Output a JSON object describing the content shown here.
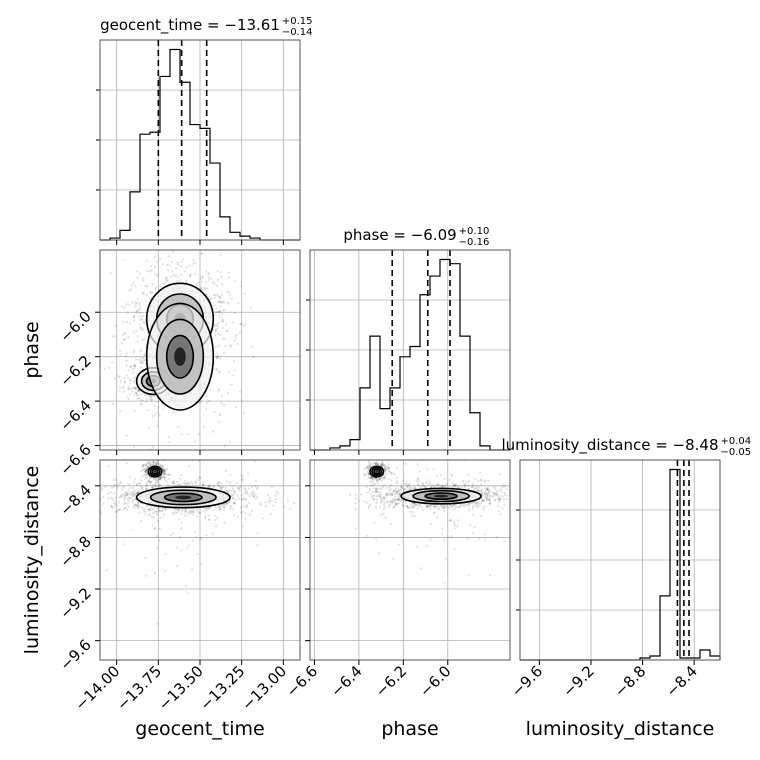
{
  "chart_data": {
    "type": "corner",
    "parameters": [
      "geocent_time",
      "phase",
      "luminosity_distance"
    ],
    "axis_labels": {
      "geocent_time": "geocent_time",
      "phase": "phase",
      "luminosity_distance": "luminosity_distance"
    },
    "ranges": {
      "geocent_time": [
        -14.1,
        -12.9
      ],
      "phase": [
        -6.62,
        -5.72
      ],
      "luminosity_distance": [
        -9.75,
        -8.2
      ]
    },
    "ticks": {
      "geocent_time": [
        -14.0,
        -13.75,
        -13.5,
        -13.25,
        -13.0
      ],
      "phase": [
        -6.6,
        -6.4,
        -6.2,
        -6.0
      ],
      "luminosity_distance": [
        -9.6,
        -9.2,
        -8.8,
        -8.4
      ]
    },
    "tick_labels": {
      "geocent_time": [
        "−14.00",
        "−13.75",
        "−13.50",
        "−13.25",
        "−13.00"
      ],
      "phase": [
        "−6.6",
        "−6.4",
        "−6.2",
        "−6.0"
      ],
      "luminosity_distance": [
        "−9.6",
        "−9.2",
        "−8.8",
        "−8.4"
      ]
    },
    "titles": {
      "geocent_time": {
        "prefix": "geocent_time = −13.61",
        "plus": "+0.15",
        "minus": "−0.14"
      },
      "phase": {
        "prefix": "phase = −6.09",
        "plus": "+0.10",
        "minus": "−0.16"
      },
      "luminosity_distance": {
        "prefix": "luminosity_distance = −8.48",
        "plus": "+0.04",
        "minus": "−0.05"
      }
    },
    "quantiles": {
      "geocent_time": [
        -13.75,
        -13.61,
        -13.46
      ],
      "phase": [
        -6.25,
        -6.09,
        -5.99
      ],
      "luminosity_distance": [
        -8.53,
        -8.48,
        -8.44
      ]
    },
    "histograms": {
      "geocent_time": {
        "edges": [
          -14.1,
          -14.04,
          -13.98,
          -13.92,
          -13.86,
          -13.8,
          -13.74,
          -13.68,
          -13.62,
          -13.56,
          -13.5,
          -13.44,
          -13.38,
          -13.32,
          -13.26,
          -13.2,
          -13.14,
          -13.08,
          -13.02,
          -12.96,
          -12.9
        ],
        "counts": [
          0.0,
          0.01,
          0.05,
          0.25,
          0.55,
          0.56,
          0.85,
          0.99,
          0.82,
          0.6,
          0.58,
          0.4,
          0.12,
          0.04,
          0.02,
          0.01,
          0.0,
          0.0,
          0.0,
          0.0
        ]
      },
      "phase": {
        "edges": [
          -6.62,
          -6.575,
          -6.53,
          -6.485,
          -6.44,
          -6.395,
          -6.35,
          -6.305,
          -6.26,
          -6.215,
          -6.17,
          -6.125,
          -6.08,
          -6.035,
          -5.99,
          -5.945,
          -5.9,
          -5.855,
          -5.81,
          -5.765,
          -5.72
        ],
        "counts": [
          0.0,
          0.0,
          0.01,
          0.02,
          0.05,
          0.3,
          0.55,
          0.2,
          0.3,
          0.45,
          0.5,
          0.75,
          0.84,
          0.92,
          0.9,
          0.55,
          0.18,
          0.02,
          0.0,
          0.0
        ]
      },
      "luminosity_distance": {
        "edges": [
          -9.75,
          -9.6725,
          -9.595,
          -9.5175,
          -9.44,
          -9.3625,
          -9.285,
          -9.2075,
          -9.13,
          -9.0525,
          -8.975,
          -8.8975,
          -8.82,
          -8.7425,
          -8.665,
          -8.5875,
          -8.51,
          -8.4325,
          -8.355,
          -8.2775,
          -8.2
        ],
        "counts": [
          0.0,
          0.0,
          0.0,
          0.0,
          0.0,
          0.0,
          0.0,
          0.0,
          0.0,
          0.0,
          0.0,
          0.0,
          0.01,
          0.02,
          0.32,
          0.95,
          0.01,
          0.01,
          0.05,
          0.02
        ]
      }
    },
    "density_peaks": {
      "phase_vs_geocent_time": [
        {
          "x": -13.62,
          "y": -6.03,
          "sx": 0.1,
          "sy": 0.08,
          "weight": 1.0
        },
        {
          "x": -13.78,
          "y": -6.31,
          "sx": 0.05,
          "sy": 0.03,
          "weight": 0.55
        },
        {
          "x": -13.62,
          "y": -6.2,
          "sx": 0.1,
          "sy": 0.12,
          "weight": 0.35
        }
      ],
      "luminosity_distance_vs_geocent_time": [
        {
          "x": -13.6,
          "y": -8.49,
          "sx": 0.14,
          "sy": 0.04,
          "weight": 1.0
        },
        {
          "x": -13.77,
          "y": -8.29,
          "sx": 0.02,
          "sy": 0.02,
          "weight": 0.3
        }
      ],
      "luminosity_distance_vs_phase": [
        {
          "x": -6.03,
          "y": -8.48,
          "sx": 0.09,
          "sy": 0.03,
          "weight": 1.0
        },
        {
          "x": -6.32,
          "y": -8.29,
          "sx": 0.015,
          "sy": 0.02,
          "weight": 0.3
        }
      ]
    },
    "grid": true
  }
}
